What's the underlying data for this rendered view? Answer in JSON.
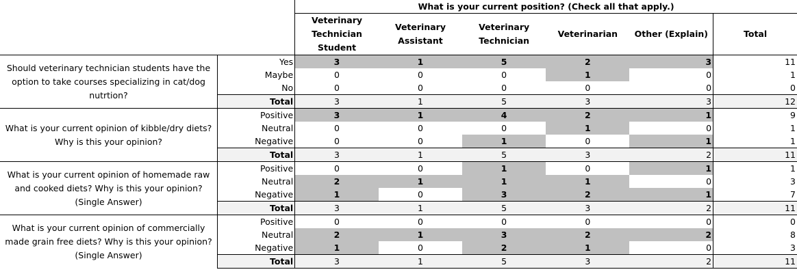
{
  "table": {
    "title": "What is your current position? (Check all that apply.)",
    "columns": [
      "Veterinary Technician Student",
      "Veterinary Assistant",
      "Veterinary Technician",
      "Veterinarian",
      "Other (Explain)",
      "Total"
    ],
    "total_label": "Total",
    "shade_color": "#c0c0c0",
    "sections": [
      {
        "question": "Should veterinary technician students have the option to take courses specializing in cat/dog nutrtion?",
        "rows": [
          {
            "label": "Yes",
            "values": [
              "3",
              "1",
              "5",
              "2",
              "3"
            ],
            "shaded": [
              true,
              true,
              true,
              true,
              true
            ],
            "total": "11"
          },
          {
            "label": "Maybe",
            "values": [
              "0",
              "0",
              "0",
              "1",
              "0"
            ],
            "shaded": [
              false,
              false,
              false,
              true,
              false
            ],
            "total": "1"
          },
          {
            "label": "No",
            "values": [
              "0",
              "0",
              "0",
              "0",
              "0"
            ],
            "shaded": [
              false,
              false,
              false,
              false,
              false
            ],
            "total": "0"
          }
        ],
        "totals": [
          "3",
          "1",
          "5",
          "3",
          "3",
          "12"
        ]
      },
      {
        "question": "What is your current opinion of kibble/dry diets? Why is this your opinion?",
        "rows": [
          {
            "label": "Positive",
            "values": [
              "3",
              "1",
              "4",
              "2",
              "1"
            ],
            "shaded": [
              true,
              true,
              true,
              true,
              true
            ],
            "total": "9"
          },
          {
            "label": "Neutral",
            "values": [
              "0",
              "0",
              "0",
              "1",
              "0"
            ],
            "shaded": [
              false,
              false,
              false,
              true,
              false
            ],
            "total": "1"
          },
          {
            "label": "Negative",
            "values": [
              "0",
              "0",
              "1",
              "0",
              "1"
            ],
            "shaded": [
              false,
              false,
              true,
              false,
              true
            ],
            "total": "1"
          }
        ],
        "totals": [
          "3",
          "1",
          "5",
          "3",
          "2",
          "11"
        ]
      },
      {
        "question": "What is your current opinion of homemade raw and cooked diets? Why is this your opinion? (Single Answer)",
        "rows": [
          {
            "label": "Positive",
            "values": [
              "0",
              "0",
              "1",
              "0",
              "1"
            ],
            "shaded": [
              false,
              false,
              true,
              false,
              true
            ],
            "total": "1"
          },
          {
            "label": "Neutral",
            "values": [
              "2",
              "1",
              "1",
              "1",
              "0"
            ],
            "shaded": [
              true,
              true,
              true,
              true,
              false
            ],
            "total": "3"
          },
          {
            "label": "Negative",
            "values": [
              "1",
              "0",
              "3",
              "2",
              "1"
            ],
            "shaded": [
              true,
              false,
              true,
              true,
              true
            ],
            "total": "7"
          }
        ],
        "totals": [
          "3",
          "1",
          "5",
          "3",
          "2",
          "11"
        ]
      },
      {
        "question": "What is your current opinion of commercially made grain free diets? Why is this your opinion? (Single Answer)",
        "rows": [
          {
            "label": "Positive",
            "values": [
              "0",
              "0",
              "0",
              "0",
              "0"
            ],
            "shaded": [
              false,
              false,
              false,
              false,
              false
            ],
            "total": "0"
          },
          {
            "label": "Neutral",
            "values": [
              "2",
              "1",
              "3",
              "2",
              "2"
            ],
            "shaded": [
              true,
              true,
              true,
              true,
              true
            ],
            "total": "8"
          },
          {
            "label": "Negative",
            "values": [
              "1",
              "0",
              "2",
              "1",
              "0"
            ],
            "shaded": [
              true,
              false,
              true,
              true,
              false
            ],
            "total": "3"
          }
        ],
        "totals": [
          "3",
          "1",
          "5",
          "3",
          "2",
          "11"
        ]
      }
    ]
  }
}
